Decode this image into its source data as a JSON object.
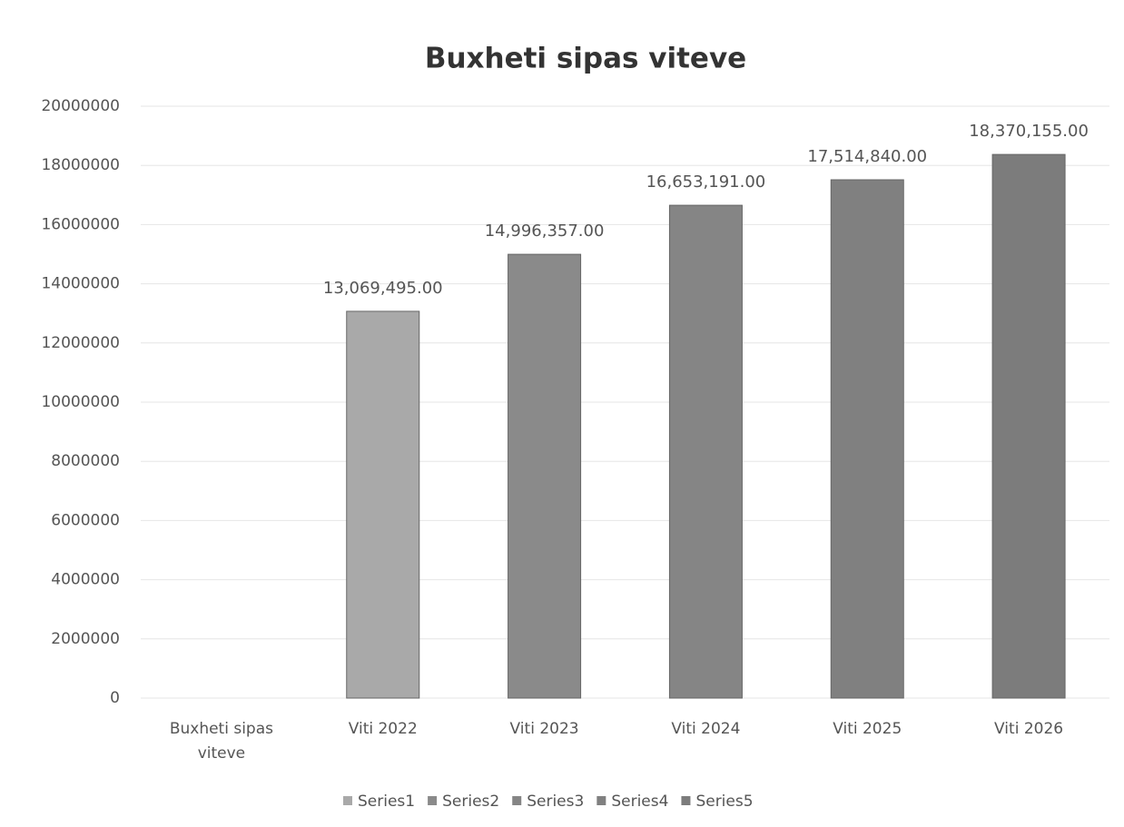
{
  "chart_data": {
    "type": "bar",
    "title": "Buxheti sipas viteve",
    "categories": [
      "Buxheti sipas viteve",
      "Viti 2022",
      "Viti 2023",
      "Viti 2024",
      "Viti 2025",
      "Viti 2026"
    ],
    "series": [
      {
        "name": "Series1",
        "color": "#a9a9a9",
        "values": [
          null,
          13069495,
          null,
          null,
          null,
          null
        ],
        "value_labels": [
          null,
          "13,069,495.00",
          null,
          null,
          null,
          null
        ]
      },
      {
        "name": "Series2",
        "color": "#8a8a8a",
        "values": [
          null,
          null,
          14996357,
          null,
          null,
          null
        ],
        "value_labels": [
          null,
          null,
          "14,996,357.00",
          null,
          null,
          null
        ]
      },
      {
        "name": "Series3",
        "color": "#858585",
        "values": [
          null,
          null,
          null,
          16653191,
          null,
          null
        ],
        "value_labels": [
          null,
          null,
          null,
          "16,653,191.00",
          null,
          null
        ]
      },
      {
        "name": "Series4",
        "color": "#808080",
        "values": [
          null,
          null,
          null,
          null,
          17514840,
          null
        ],
        "value_labels": [
          null,
          null,
          null,
          null,
          "17,514,840.00",
          null
        ]
      },
      {
        "name": "Series5",
        "color": "#7c7c7c",
        "values": [
          null,
          null,
          null,
          null,
          null,
          18370155
        ],
        "value_labels": [
          null,
          null,
          null,
          null,
          null,
          "18,370,155.00"
        ]
      }
    ],
    "ylim": [
      0,
      20000000
    ],
    "yticks": [
      0,
      2000000,
      4000000,
      6000000,
      8000000,
      10000000,
      12000000,
      14000000,
      16000000,
      18000000,
      20000000
    ],
    "grid": true,
    "legend": "bottom"
  }
}
